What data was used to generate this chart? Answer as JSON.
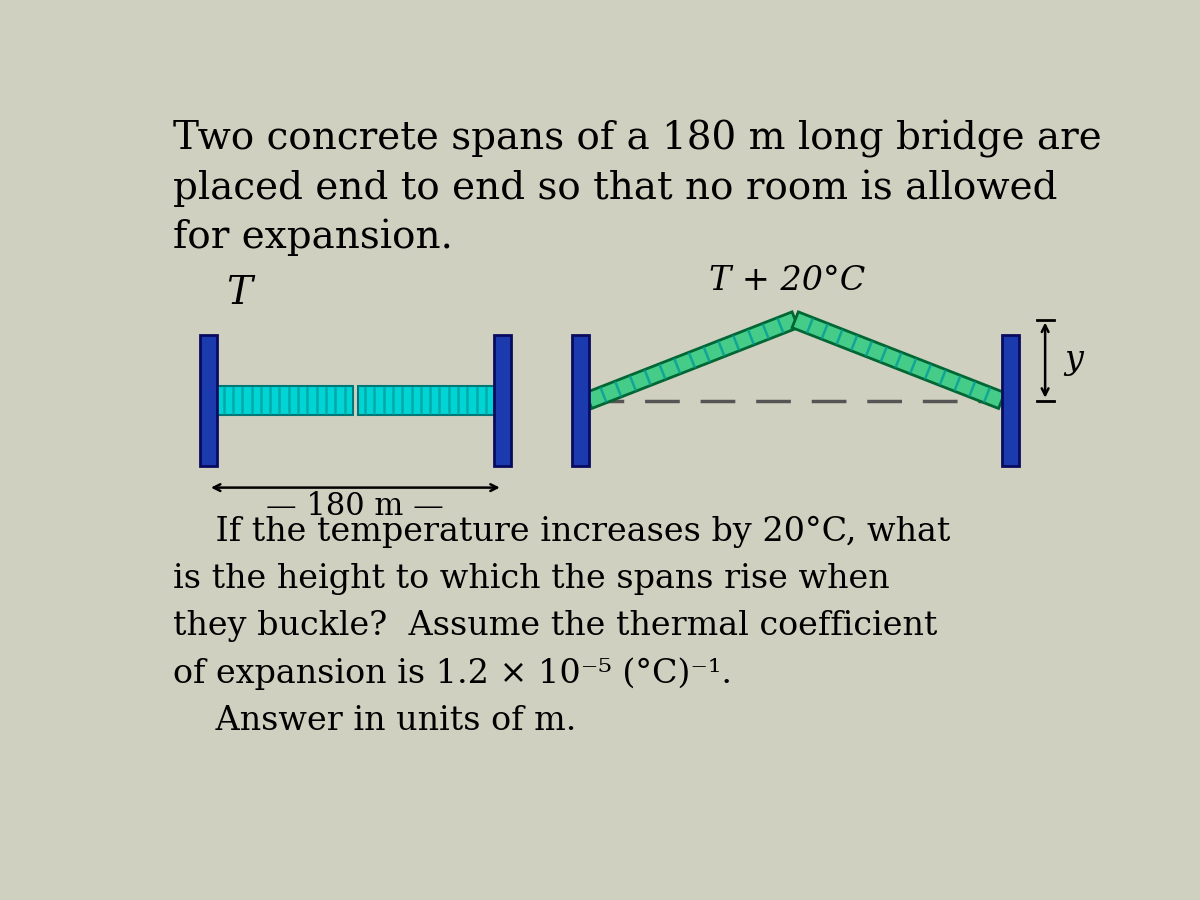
{
  "bg_color": "#d0d0c0",
  "title_text": "Two concrete spans of a 180 m long bridge are\nplaced end to end so that no room is allowed\nfor expansion.",
  "body_text1": "    If the temperature increases by 20°C, what\nis the height to which the spans rise when\nthey buckle?  Assume the thermal coefficient\nof expansion is 1.2 × 10⁻⁵ (°C)⁻¹.\n    Answer in units of m.",
  "label_T": "T",
  "label_T20": "T + 20°C",
  "label_180m": "— 180 m —",
  "label_y": "y",
  "beam_color": "#00d4d4",
  "post_color": "#1a3aad",
  "buckled_fill": "#44cc88",
  "dashed_color": "#555555",
  "font_size_title": 28,
  "font_size_body": 24,
  "font_size_label": 22,
  "font_size_small": 20
}
